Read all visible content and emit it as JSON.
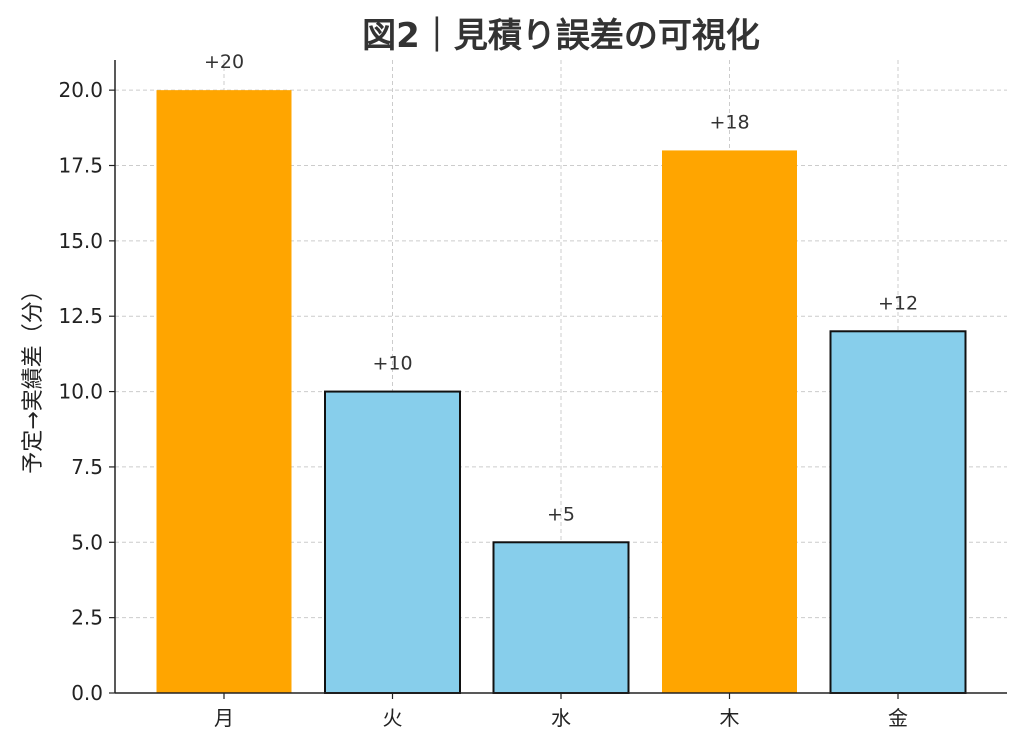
{
  "chart_data": {
    "type": "bar",
    "title": "図2｜見積り誤差の可視化",
    "xlabel": "",
    "ylabel": "予定→実績差（分）",
    "categories": [
      "月",
      "火",
      "水",
      "木",
      "金"
    ],
    "values": [
      20,
      10,
      5,
      18,
      12
    ],
    "data_labels": [
      "+20",
      "+10",
      "+5",
      "+18",
      "+12"
    ],
    "bar_colors": [
      "#FFA500",
      "#87CEEB",
      "#87CEEB",
      "#FFA500",
      "#87CEEB"
    ],
    "ylim": [
      0,
      21
    ],
    "yticks": [
      "0.0",
      "2.5",
      "5.0",
      "7.5",
      "10.0",
      "12.5",
      "15.0",
      "17.5",
      "20.0"
    ],
    "grid": true
  }
}
